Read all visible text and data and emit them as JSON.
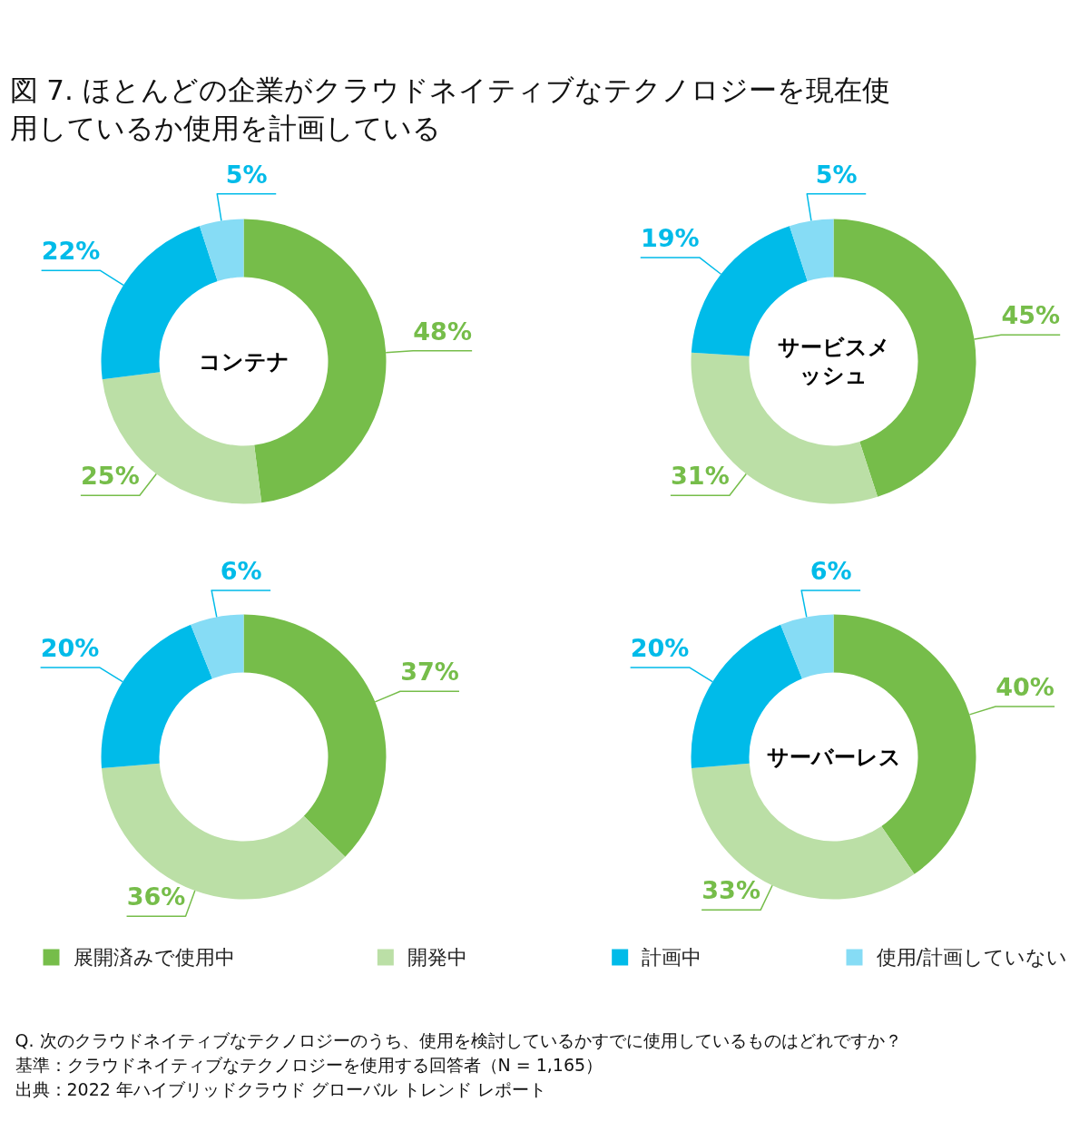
{
  "chart_data": {
    "type": "donut",
    "title": "図 7. ほとんどの企業がクラウドネイティブなテクノロジーを現在使用しているか使用を計画している",
    "categories": [
      "展開済みで使用中",
      "開発中",
      "計画中",
      "使用/計画していない"
    ],
    "colors": [
      "#76bd4a",
      "#bbdfa6",
      "#00bbe9",
      "#86dcf5"
    ],
    "series": [
      {
        "name": "コンテナ",
        "values": [
          48,
          25,
          22,
          5
        ],
        "value_labels": [
          "48%",
          "25%",
          "22%",
          "5%"
        ]
      },
      {
        "name": "サービスメッシュ",
        "values": [
          45,
          31,
          19,
          5
        ],
        "value_labels": [
          "45%",
          "31%",
          "19%",
          "5%"
        ]
      },
      {
        "values": [
          37,
          36,
          20,
          6
        ],
        "value_labels": [
          "37%",
          "36%",
          "20%",
          "6%"
        ]
      },
      {
        "name": "サーバーレス",
        "values": [
          40,
          33,
          20,
          6
        ],
        "value_labels": [
          "40%",
          "33%",
          "20%",
          "6%"
        ]
      }
    ],
    "legend": "bottom",
    "annotations": [
      "Q. 次のクラウドネイティブなテクノロジーのうち、使用を検討しているかすでに使用しているものはどれですか？",
      "基準：クラウドネイティブなテクノロジーを使用する回答者（N = 1,165）",
      "出典：2022 年ハイブリッドクラウド グローバル トレンド レポート"
    ]
  }
}
